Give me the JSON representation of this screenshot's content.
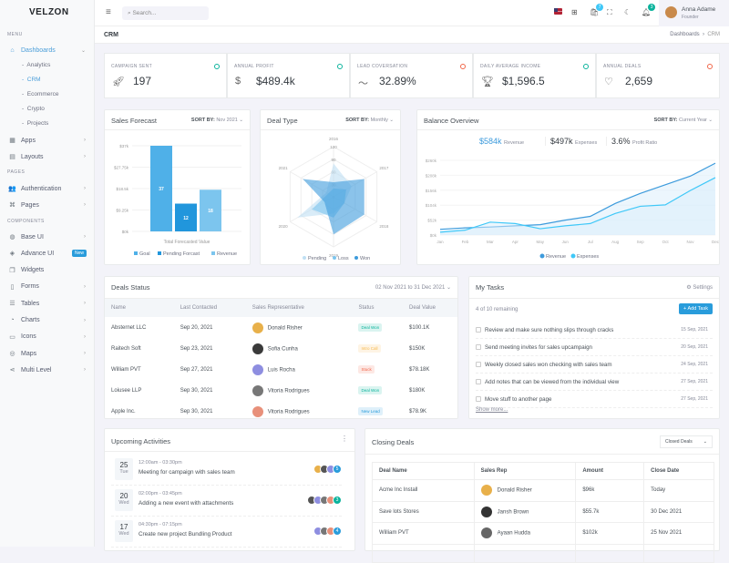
{
  "app": {
    "logo": "VELZON"
  },
  "sidebar": {
    "menu_title": "MENU",
    "pages_title": "PAGES",
    "components_title": "COMPONENTS",
    "dashboards": "Dashboards",
    "sub": [
      "Analytics",
      "CRM",
      "Ecommerce",
      "Crypto",
      "Projects"
    ],
    "items": [
      {
        "label": "Apps",
        "icon": "apps-icon",
        "glyph": "▦"
      },
      {
        "label": "Layouts",
        "icon": "layout-icon",
        "glyph": "▤"
      }
    ],
    "pages": [
      {
        "label": "Authentication",
        "icon": "users-icon",
        "glyph": "👥"
      },
      {
        "label": "Pages",
        "icon": "command-icon",
        "glyph": "⌘"
      }
    ],
    "components": [
      {
        "label": "Base UI",
        "icon": "pencil-ruler-icon",
        "glyph": "◍"
      },
      {
        "label": "Advance UI",
        "icon": "stack-icon",
        "glyph": "◈",
        "badge": "New"
      },
      {
        "label": "Widgets",
        "icon": "widgets-icon",
        "glyph": "❐"
      },
      {
        "label": "Forms",
        "icon": "file-icon",
        "glyph": "▯"
      },
      {
        "label": "Tables",
        "icon": "database-icon",
        "glyph": "☰"
      },
      {
        "label": "Charts",
        "icon": "pie-chart-icon",
        "glyph": "◔"
      },
      {
        "label": "Icons",
        "icon": "archive-icon",
        "glyph": "▭"
      },
      {
        "label": "Maps",
        "icon": "map-pin-icon",
        "glyph": "◎"
      },
      {
        "label": "Multi Level",
        "icon": "share-icon",
        "glyph": "⋖"
      }
    ]
  },
  "topbar": {
    "search_placeholder": "Search...",
    "cart_count": "7",
    "notif_count": "3",
    "user_name": "Anna Adame",
    "user_role": "Founder"
  },
  "page": {
    "title": "CRM",
    "breadcrumb": [
      "Dashboards",
      "CRM"
    ]
  },
  "stats": [
    {
      "label": "CAMPAIGN SENT",
      "value": "197",
      "trend": "up",
      "icon": "rocket-icon"
    },
    {
      "label": "ANNUAL PROFIT",
      "value": "$489.4k",
      "trend": "up",
      "icon": "exchange-dollar-icon"
    },
    {
      "label": "LEAD COVERSATION",
      "value": "32.89%",
      "trend": "down",
      "icon": "pulse-icon"
    },
    {
      "label": "DAILY AVERAGE INCOME",
      "value": "$1,596.5",
      "trend": "up",
      "icon": "trophy-icon"
    },
    {
      "label": "ANNUAL DEALS",
      "value": "2,659",
      "trend": "down",
      "icon": "service-icon"
    }
  ],
  "colors": {
    "up": "#0ab39c",
    "down": "#f06548",
    "primary": "#299cdb",
    "revenue": "#3d9bdc",
    "expenses": "#3fc8f8"
  },
  "sales_forecast": {
    "title": "Sales Forecast",
    "sort_label": "SORT BY:",
    "sort_value": "Nov 2021"
  },
  "deal_type": {
    "title": "Deal Type",
    "sort_label": "SORT BY:",
    "sort_value": "Monthly"
  },
  "balance": {
    "title": "Balance Overview",
    "sort_label": "SORT BY:",
    "sort_value": "Current Year",
    "summary": [
      {
        "value": "$584k",
        "label": "Revenue"
      },
      {
        "value": "$497k",
        "label": "Expenses"
      },
      {
        "value": "3.6%",
        "label": "Profit Ratio"
      }
    ]
  },
  "chart_data": [
    {
      "type": "bar",
      "title": "Sales Forecast",
      "xlabel": "Total Forecasted Value",
      "ylim": [
        0,
        37
      ],
      "yticks": [
        "$0k",
        "$9.25k",
        "$18.5k",
        "$27.75k",
        "$37k"
      ],
      "series": [
        {
          "name": "Goal",
          "value": 37,
          "color": "#4fb0e8"
        },
        {
          "name": "Pending Forcast",
          "value": 12,
          "color": "#2196dc"
        },
        {
          "name": "Revenue",
          "value": 18,
          "color": "#7cc5ee"
        }
      ],
      "legend": "bottom",
      "grid": true
    },
    {
      "type": "radar",
      "title": "Deal Type",
      "categories": [
        "2016",
        "2017",
        "2018",
        "2019",
        "2020",
        "2021"
      ],
      "rlim": [
        0,
        120
      ],
      "rticks": [
        "0",
        "30",
        "60",
        "90",
        "120"
      ],
      "series": [
        {
          "name": "Pending",
          "values": [
            80,
            50,
            30,
            40,
            100,
            20
          ],
          "color": "#bfe0f4"
        },
        {
          "name": "Loss",
          "values": [
            20,
            35,
            30,
            50,
            60,
            15
          ],
          "color": "#7cc5ee"
        },
        {
          "name": "Won",
          "values": [
            35,
            85,
            85,
            90,
            25,
            85
          ],
          "color": "#3d9bdc"
        }
      ],
      "legend": "bottom"
    },
    {
      "type": "area",
      "title": "Balance Overview",
      "categories": [
        "Jan",
        "Feb",
        "Mar",
        "Apr",
        "May",
        "Jun",
        "Jul",
        "Aug",
        "Sep",
        "Oct",
        "Nov",
        "Dec"
      ],
      "ylim": [
        0,
        260
      ],
      "yticks": [
        "$0k",
        "$52k",
        "$104k",
        "$156k",
        "$208k",
        "$260k"
      ],
      "series": [
        {
          "name": "Revenue",
          "values": [
            20,
            25,
            28,
            32,
            36,
            52,
            65,
            110,
            145,
            175,
            205,
            250
          ]
        },
        {
          "name": "Expenses",
          "values": [
            10,
            17,
            45,
            40,
            22,
            32,
            40,
            75,
            100,
            105,
            155,
            200
          ]
        }
      ],
      "legend": "bottom",
      "grid": true
    }
  ],
  "deals_status": {
    "title": "Deals Status",
    "range": "02 Nov 2021 to 31 Dec 2021",
    "columns": [
      "Name",
      "Last Contacted",
      "Sales Representative",
      "Status",
      "Deal Value"
    ],
    "rows": [
      {
        "name": "Absternet LLC",
        "date": "Sep 20, 2021",
        "rep": "Donald Risher",
        "status": "Deal Won",
        "value": "$100.1K",
        "av": "#e8b04a"
      },
      {
        "name": "Raitech Soft",
        "date": "Sep 23, 2021",
        "rep": "Sofia Cunha",
        "status": "Intro Call",
        "value": "$150K",
        "av": "#3a3a3a"
      },
      {
        "name": "William PVT",
        "date": "Sep 27, 2021",
        "rep": "Luis Rocha",
        "status": "Stuck",
        "value": "$78.18K",
        "av": "#8e8ee0"
      },
      {
        "name": "Loiusee LLP",
        "date": "Sep 30, 2021",
        "rep": "Vitoria Rodrigues",
        "status": "Deal Won",
        "value": "$180K",
        "av": "#777"
      },
      {
        "name": "Apple Inc.",
        "date": "Sep 30, 2021",
        "rep": "Vitoria Rodrigues",
        "status": "New Lead",
        "value": "$78.9K",
        "av": "#e8907a"
      }
    ]
  },
  "tasks": {
    "title": "My Tasks",
    "settings": "Settings",
    "remaining": "4 of 10 remaining",
    "add": "Add Task",
    "show_more": "Show more...",
    "items": [
      {
        "text": "Review and make sure nothing slips through cracks",
        "date": "15 Sep, 2021"
      },
      {
        "text": "Send meeting invites for sales upcampaign",
        "date": "20 Sep, 2021"
      },
      {
        "text": "Weekly closed sales won checking with sales team",
        "date": "24 Sep, 2021"
      },
      {
        "text": "Add notes that can be viewed from the individual view",
        "date": "27 Sep, 2021"
      },
      {
        "text": "Move stuff to another page",
        "date": "27 Sep, 2021"
      }
    ]
  },
  "activities": {
    "title": "Upcoming Activities",
    "items": [
      {
        "day": "25",
        "weekday": "Tue",
        "time": "12:00am - 03:30pm",
        "text": "Meeting for campaign with sales team",
        "more": "5",
        "color": "#299cdb"
      },
      {
        "day": "20",
        "weekday": "Wed",
        "time": "02:00pm - 03:45pm",
        "text": "Adding a new event with attachments",
        "more": "3",
        "color": "#0ab39c"
      },
      {
        "day": "17",
        "weekday": "Wed",
        "time": "04:30pm - 07:15pm",
        "text": "Create new project Bundling Product",
        "more": "4",
        "color": "#299cdb"
      }
    ]
  },
  "closing": {
    "title": "Closing Deals",
    "filter": "Closed Deals",
    "columns": [
      "Deal Name",
      "Sales Rep",
      "Amount",
      "Close Date"
    ],
    "rows": [
      {
        "name": "Acme Inc Install",
        "rep": "Donald Risher",
        "amount": "$96k",
        "date": "Today",
        "av": "#e8b04a"
      },
      {
        "name": "Save lots Stores",
        "rep": "Jansh Brown",
        "amount": "$55.7k",
        "date": "30 Dec 2021",
        "av": "#333"
      },
      {
        "name": "William PVT",
        "rep": "Ayaan Hudda",
        "amount": "$102k",
        "date": "25 Nov 2021",
        "av": "#666"
      }
    ]
  }
}
